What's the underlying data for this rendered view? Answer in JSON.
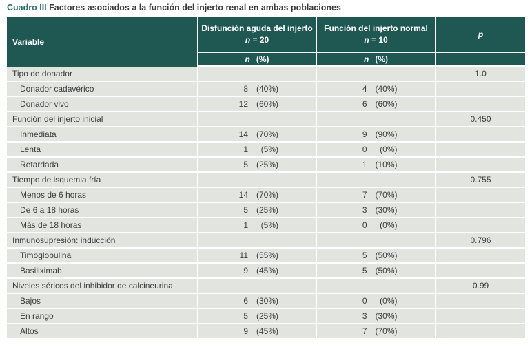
{
  "title": {
    "label": "Cuadro III",
    "text": " Factores asociados a la función del injerto renal en ambas poblaciones"
  },
  "colors": {
    "header_teal": "#1f5752",
    "title_teal": "#2a716b",
    "row_gray": "#e2e4e0",
    "text_dark": "#3d3d3d"
  },
  "table": {
    "header": {
      "variable": "Variable",
      "col2": {
        "line1": "Disfunción aguda del injerto",
        "n_italic": "n",
        "n_rest": " = 20"
      },
      "col3": {
        "line1": "Función del injerto normal",
        "n_italic": "n",
        "n_rest": " = 10"
      },
      "p": "p",
      "sub_n": "n",
      "sub_pct": "(%)"
    },
    "rows": [
      {
        "label": "Tipo de donador",
        "indent": false,
        "n1": "",
        "pct1": "",
        "n2": "",
        "pct2": "",
        "p": "1.0"
      },
      {
        "label": "Donador cadavérico",
        "indent": true,
        "n1": "8",
        "pct1": "(40%)",
        "n2": "4",
        "pct2": "(40%)",
        "p": ""
      },
      {
        "label": "Donador vivo",
        "indent": true,
        "n1": "12",
        "pct1": "(60%)",
        "n2": "6",
        "pct2": "(60%)",
        "p": ""
      },
      {
        "label": "Función del injerto inicial",
        "indent": false,
        "n1": "",
        "pct1": "",
        "n2": "",
        "pct2": "",
        "p": "0.450"
      },
      {
        "label": "Inmediata",
        "indent": true,
        "n1": "14",
        "pct1": "(70%)",
        "n2": "9",
        "pct2": "(90%)",
        "p": ""
      },
      {
        "label": "Lenta",
        "indent": true,
        "n1": "1",
        "pct1": "(5%)",
        "n2": "0",
        "pct2": "(0%)",
        "p": ""
      },
      {
        "label": "Retardada",
        "indent": true,
        "n1": "5",
        "pct1": "(25%)",
        "n2": "1",
        "pct2": "(10%)",
        "p": ""
      },
      {
        "label": "Tiempo de isquemia fría",
        "indent": false,
        "n1": "",
        "pct1": "",
        "n2": "",
        "pct2": "",
        "p": "0.755"
      },
      {
        "label": "Menos de 6 horas",
        "indent": true,
        "n1": "14",
        "pct1": "(70%)",
        "n2": "7",
        "pct2": "(70%)",
        "p": ""
      },
      {
        "label": "De 6 a 18 horas",
        "indent": true,
        "n1": "5",
        "pct1": "(25%)",
        "n2": "3",
        "pct2": "(30%)",
        "p": ""
      },
      {
        "label": "Más de 18 horas",
        "indent": true,
        "n1": "1",
        "pct1": "(5%)",
        "n2": "0",
        "pct2": "(0%)",
        "p": ""
      },
      {
        "label": "Inmunosupresión: inducción",
        "indent": false,
        "n1": "",
        "pct1": "",
        "n2": "",
        "pct2": "",
        "p": "0.796"
      },
      {
        "label": "Timoglobulina",
        "indent": true,
        "n1": "11",
        "pct1": "(55%)",
        "n2": "5",
        "pct2": "(50%)",
        "p": ""
      },
      {
        "label": "Basiliximab",
        "indent": true,
        "n1": "9",
        "pct1": "(45%)",
        "n2": "5",
        "pct2": "(50%)",
        "p": ""
      },
      {
        "label": "Niveles séricos del inhibidor de calcineurina",
        "indent": false,
        "n1": "",
        "pct1": "",
        "n2": "",
        "pct2": "",
        "p": "0.99"
      },
      {
        "label": "Bajos",
        "indent": true,
        "n1": "6",
        "pct1": "(30%)",
        "n2": "0",
        "pct2": "(0%)",
        "p": ""
      },
      {
        "label": "En rango",
        "indent": true,
        "n1": "5",
        "pct1": "(25%)",
        "n2": "3",
        "pct2": "(30%)",
        "p": ""
      },
      {
        "label": "Altos",
        "indent": true,
        "n1": "9",
        "pct1": "(45%)",
        "n2": "7",
        "pct2": "(70%)",
        "p": ""
      }
    ]
  }
}
